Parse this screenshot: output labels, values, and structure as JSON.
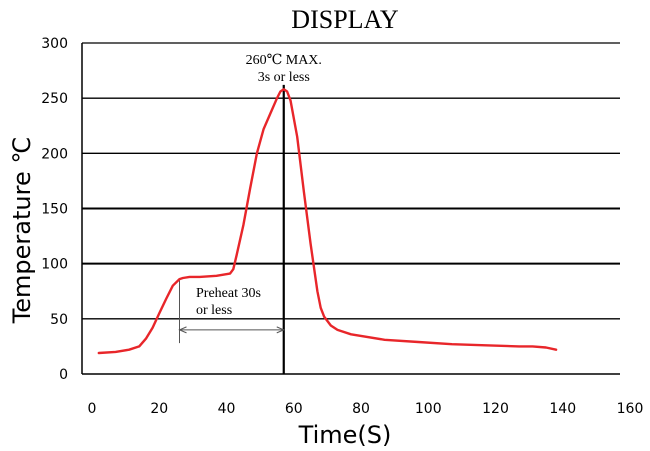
{
  "chart_data": {
    "type": "line",
    "title": "DISPLAY",
    "xlabel": "Time(S)",
    "ylabel": "Temperature ℃",
    "xlim": [
      0,
      160
    ],
    "ylim": [
      0,
      300
    ],
    "x_ticks": [
      0,
      20,
      40,
      60,
      80,
      100,
      120,
      140,
      160
    ],
    "y_ticks": [
      0,
      50,
      100,
      150,
      200,
      250,
      300
    ],
    "grid": {
      "horizontal": true,
      "vertical": false
    },
    "legend": "none",
    "series": [
      {
        "color": "#e8262a",
        "x": [
          5,
          10,
          14,
          17,
          19,
          21,
          23,
          25,
          27,
          29,
          30,
          32,
          35,
          40,
          44,
          45,
          46,
          48,
          50,
          52,
          54,
          56,
          58,
          59,
          60,
          61,
          62,
          64,
          66,
          68,
          70,
          71,
          72,
          74,
          76,
          80,
          90,
          100,
          110,
          120,
          130,
          134,
          138,
          141
        ],
        "y": [
          19,
          20,
          22,
          25,
          32,
          42,
          55,
          68,
          80,
          86,
          87,
          88,
          88,
          89,
          91,
          95,
          108,
          135,
          168,
          200,
          222,
          236,
          250,
          256,
          258,
          256,
          248,
          215,
          165,
          118,
          75,
          60,
          52,
          44,
          40,
          36,
          31,
          29,
          27,
          26,
          25,
          25,
          24,
          22
        ]
      }
    ],
    "annotations": {
      "peak_line1": "260℃ MAX.",
      "peak_line2": "3s or less",
      "peak_x": 60,
      "preheat_line1": "Preheat 30s",
      "preheat_line2": "or less",
      "preheat_from": 29,
      "preheat_to": 60,
      "preheat_arrow_y": 40,
      "preheat_vline_bottom": 28,
      "preheat_vline_top": 87
    }
  }
}
